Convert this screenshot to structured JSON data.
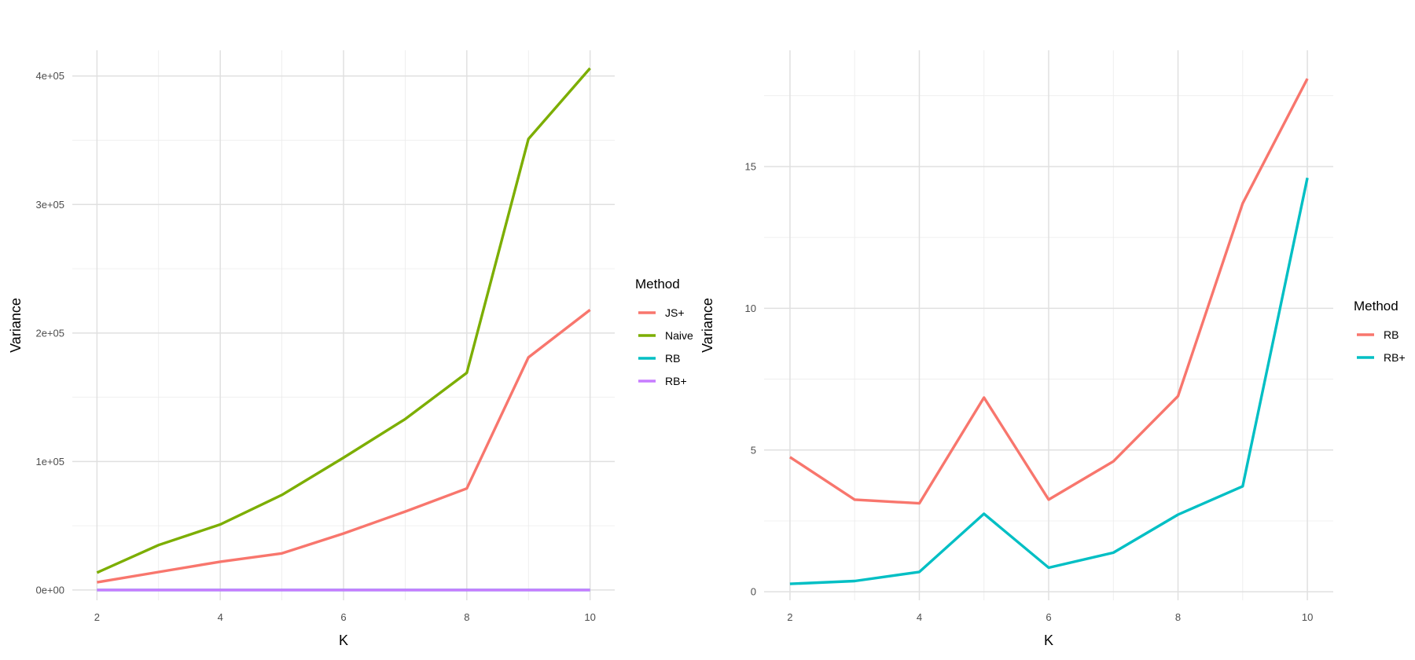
{
  "chart_data": [
    {
      "type": "line",
      "xlabel": "K",
      "ylabel": "Variance",
      "xlim": [
        1.6,
        10.4
      ],
      "ylim": [
        -8000,
        420000
      ],
      "x_ticks": [
        2,
        4,
        6,
        8,
        10
      ],
      "x_ticklabels": [
        "2",
        "4",
        "6",
        "8",
        "10"
      ],
      "y_ticks": [
        0,
        100000,
        200000,
        300000,
        400000
      ],
      "y_ticklabels": [
        "0e+00",
        "1e+05",
        "2e+05",
        "3e+05",
        "4e+05"
      ],
      "grid": true,
      "legend": {
        "title": "Method",
        "position": "right"
      },
      "x": [
        2,
        3,
        4,
        5,
        6,
        7,
        8,
        9,
        10
      ],
      "series": [
        {
          "name": "JS+",
          "color": "#F8766D",
          "values": [
            6000,
            14000,
            22000,
            28500,
            44000,
            61000,
            79000,
            181000,
            218000
          ]
        },
        {
          "name": "Naive",
          "color": "#7CAE00",
          "values": [
            13500,
            35000,
            51000,
            74000,
            103000,
            133000,
            169000,
            351000,
            406000
          ]
        },
        {
          "name": "RB",
          "color": "#00BFC4",
          "values": [
            4,
            3,
            3,
            7,
            3,
            5,
            7,
            14,
            18
          ]
        },
        {
          "name": "RB+",
          "color": "#C77CFF",
          "values": [
            0.3,
            0.4,
            0.7,
            2.8,
            0.8,
            1.4,
            2.7,
            3.7,
            14.6
          ]
        }
      ]
    },
    {
      "type": "line",
      "xlabel": "K",
      "ylabel": "Variance",
      "xlim": [
        1.6,
        10.4
      ],
      "ylim": [
        -0.3,
        19.1
      ],
      "x_ticks": [
        2,
        4,
        6,
        8,
        10
      ],
      "x_ticklabels": [
        "2",
        "4",
        "6",
        "8",
        "10"
      ],
      "y_ticks": [
        0,
        5,
        10,
        15
      ],
      "y_ticklabels": [
        "0",
        "5",
        "10",
        "15"
      ],
      "grid": true,
      "legend": {
        "title": "Method",
        "position": "right"
      },
      "x": [
        2,
        3,
        4,
        5,
        6,
        7,
        8,
        9,
        10
      ],
      "series": [
        {
          "name": "RB",
          "color": "#F8766D",
          "values": [
            4.75,
            3.25,
            3.12,
            6.85,
            3.25,
            4.6,
            6.9,
            13.7,
            18.1
          ]
        },
        {
          "name": "RB+",
          "color": "#00BFC4",
          "values": [
            0.28,
            0.38,
            0.7,
            2.75,
            0.85,
            1.38,
            2.72,
            3.72,
            14.6
          ]
        }
      ]
    }
  ]
}
